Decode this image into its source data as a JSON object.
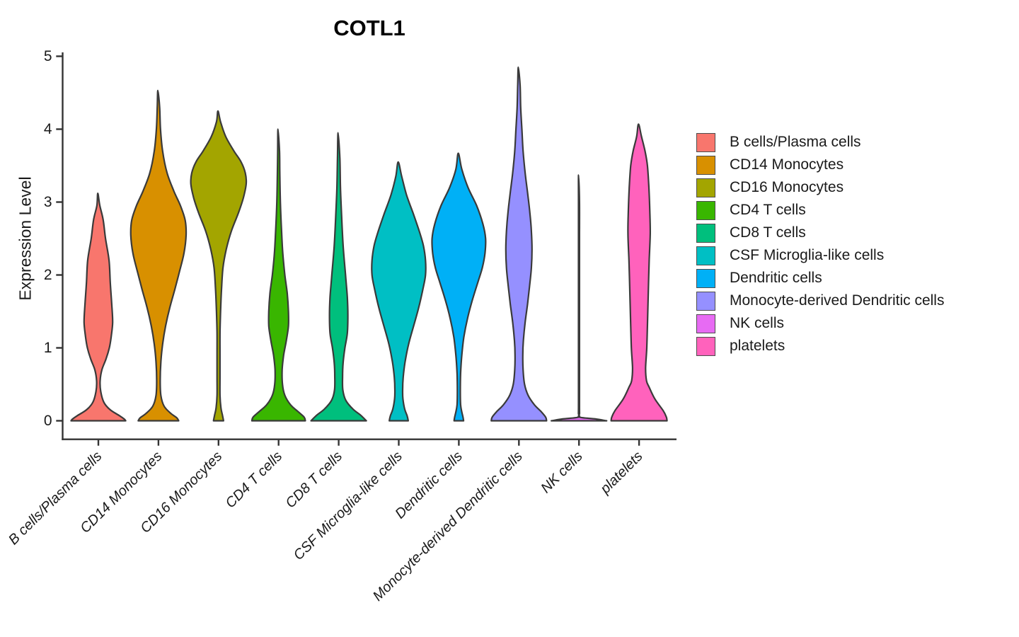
{
  "title": "COTL1",
  "y_axis": {
    "label": "Expression Level"
  },
  "legend": {
    "items": [
      {
        "label": "B cells/Plasma cells",
        "color": "#F8766D"
      },
      {
        "label": "CD14 Monocytes",
        "color": "#D89000"
      },
      {
        "label": "CD16 Monocytes",
        "color": "#A3A500"
      },
      {
        "label": "CD4 T cells",
        "color": "#39B600"
      },
      {
        "label": "CD8 T cells",
        "color": "#00BF7D"
      },
      {
        "label": "CSF Microglia-like cells",
        "color": "#00BFC4"
      },
      {
        "label": "Dendritic cells",
        "color": "#00B0F6"
      },
      {
        "label": "Monocyte-derived Dendritic cells",
        "color": "#9590FF"
      },
      {
        "label": "NK cells",
        "color": "#E76BF3"
      },
      {
        "label": "platelets",
        "color": "#FF62BC"
      }
    ]
  },
  "chart_data": {
    "type": "violin",
    "title": "COTL1",
    "xlabel": "",
    "ylabel": "Expression Level",
    "ylim": [
      0,
      5
    ],
    "y_ticks": [
      0,
      1,
      2,
      3,
      4,
      5
    ],
    "grid": false,
    "legend_position": "right",
    "outline_color": "#3A3A3A",
    "categories": [
      "B cells/Plasma cells",
      "CD14 Monocytes",
      "CD16 Monocytes",
      "CD4 T cells",
      "CD8 T cells",
      "CSF Microglia-like cells",
      "Dendritic cells",
      "Monocyte-derived Dendritic cells",
      "NK cells",
      "platelets"
    ],
    "series": [
      {
        "name": "B cells/Plasma cells",
        "color": "#F8766D",
        "peak_expression": 3.12,
        "profile": [
          [
            3.12,
            0.02
          ],
          [
            2.95,
            0.05
          ],
          [
            2.76,
            0.16
          ],
          [
            2.5,
            0.24
          ],
          [
            2.2,
            0.36
          ],
          [
            1.9,
            0.4
          ],
          [
            1.6,
            0.45
          ],
          [
            1.35,
            0.48
          ],
          [
            1.15,
            0.43
          ],
          [
            1.0,
            0.37
          ],
          [
            0.85,
            0.26
          ],
          [
            0.7,
            0.12
          ],
          [
            0.55,
            0.06
          ],
          [
            0.4,
            0.08
          ],
          [
            0.25,
            0.19
          ],
          [
            0.15,
            0.4
          ],
          [
            0.07,
            0.71
          ],
          [
            0.02,
            0.88
          ],
          [
            0,
            0.92
          ]
        ]
      },
      {
        "name": "CD14 Monocytes",
        "color": "#D89000",
        "peak_expression": 4.53,
        "profile": [
          [
            4.53,
            0.02
          ],
          [
            4.3,
            0.04
          ],
          [
            4.0,
            0.07
          ],
          [
            3.7,
            0.14
          ],
          [
            3.4,
            0.29
          ],
          [
            3.15,
            0.52
          ],
          [
            2.95,
            0.74
          ],
          [
            2.75,
            0.9
          ],
          [
            2.55,
            0.93
          ],
          [
            2.3,
            0.86
          ],
          [
            2.05,
            0.71
          ],
          [
            1.8,
            0.55
          ],
          [
            1.55,
            0.38
          ],
          [
            1.3,
            0.24
          ],
          [
            1.05,
            0.14
          ],
          [
            0.8,
            0.08
          ],
          [
            0.55,
            0.06
          ],
          [
            0.35,
            0.08
          ],
          [
            0.2,
            0.19
          ],
          [
            0.1,
            0.42
          ],
          [
            0.04,
            0.62
          ],
          [
            0,
            0.68
          ]
        ]
      },
      {
        "name": "CD16 Monocytes",
        "color": "#A3A500",
        "peak_expression": 4.25,
        "profile": [
          [
            4.25,
            0.02
          ],
          [
            4.1,
            0.07
          ],
          [
            3.9,
            0.24
          ],
          [
            3.7,
            0.52
          ],
          [
            3.55,
            0.76
          ],
          [
            3.4,
            0.9
          ],
          [
            3.25,
            0.93
          ],
          [
            3.05,
            0.83
          ],
          [
            2.85,
            0.67
          ],
          [
            2.6,
            0.43
          ],
          [
            2.35,
            0.26
          ],
          [
            2.1,
            0.15
          ],
          [
            1.8,
            0.1
          ],
          [
            1.5,
            0.07
          ],
          [
            1.2,
            0.05
          ],
          [
            0.9,
            0.05
          ],
          [
            0.6,
            0.05
          ],
          [
            0.35,
            0.05
          ],
          [
            0.18,
            0.08
          ],
          [
            0.08,
            0.13
          ],
          [
            0,
            0.17
          ]
        ]
      },
      {
        "name": "CD4 T cells",
        "color": "#39B600",
        "peak_expression": 4.0,
        "profile": [
          [
            4.0,
            0.02
          ],
          [
            3.7,
            0.03
          ],
          [
            3.4,
            0.04
          ],
          [
            3.0,
            0.06
          ],
          [
            2.6,
            0.1
          ],
          [
            2.3,
            0.14
          ],
          [
            2.0,
            0.21
          ],
          [
            1.75,
            0.29
          ],
          [
            1.5,
            0.33
          ],
          [
            1.3,
            0.33
          ],
          [
            1.1,
            0.26
          ],
          [
            0.9,
            0.17
          ],
          [
            0.7,
            0.12
          ],
          [
            0.5,
            0.13
          ],
          [
            0.35,
            0.21
          ],
          [
            0.22,
            0.4
          ],
          [
            0.12,
            0.67
          ],
          [
            0.05,
            0.86
          ],
          [
            0,
            0.9
          ]
        ]
      },
      {
        "name": "CD8 T cells",
        "color": "#00BF7D",
        "peak_expression": 3.95,
        "profile": [
          [
            3.95,
            0.02
          ],
          [
            3.6,
            0.04
          ],
          [
            3.2,
            0.06
          ],
          [
            2.8,
            0.1
          ],
          [
            2.4,
            0.15
          ],
          [
            2.0,
            0.23
          ],
          [
            1.7,
            0.29
          ],
          [
            1.45,
            0.31
          ],
          [
            1.2,
            0.29
          ],
          [
            1.0,
            0.21
          ],
          [
            0.8,
            0.15
          ],
          [
            0.6,
            0.13
          ],
          [
            0.42,
            0.14
          ],
          [
            0.28,
            0.24
          ],
          [
            0.16,
            0.48
          ],
          [
            0.08,
            0.73
          ],
          [
            0,
            0.93
          ]
        ]
      },
      {
        "name": "CSF Microglia-like cells",
        "color": "#00BFC4",
        "peak_expression": 3.55,
        "profile": [
          [
            3.55,
            0.02
          ],
          [
            3.35,
            0.1
          ],
          [
            3.1,
            0.26
          ],
          [
            2.85,
            0.48
          ],
          [
            2.6,
            0.69
          ],
          [
            2.4,
            0.83
          ],
          [
            2.2,
            0.9
          ],
          [
            2.0,
            0.9
          ],
          [
            1.8,
            0.81
          ],
          [
            1.55,
            0.67
          ],
          [
            1.3,
            0.5
          ],
          [
            1.05,
            0.33
          ],
          [
            0.8,
            0.21
          ],
          [
            0.6,
            0.15
          ],
          [
            0.42,
            0.13
          ],
          [
            0.3,
            0.14
          ],
          [
            0.16,
            0.2
          ],
          [
            0.07,
            0.28
          ],
          [
            0,
            0.32
          ]
        ]
      },
      {
        "name": "Dendritic cells",
        "color": "#00B0F6",
        "peak_expression": 3.67,
        "profile": [
          [
            3.67,
            0.02
          ],
          [
            3.45,
            0.1
          ],
          [
            3.2,
            0.31
          ],
          [
            2.95,
            0.6
          ],
          [
            2.7,
            0.81
          ],
          [
            2.5,
            0.9
          ],
          [
            2.3,
            0.88
          ],
          [
            2.1,
            0.79
          ],
          [
            1.9,
            0.64
          ],
          [
            1.65,
            0.45
          ],
          [
            1.4,
            0.29
          ],
          [
            1.15,
            0.17
          ],
          [
            0.9,
            0.1
          ],
          [
            0.65,
            0.06
          ],
          [
            0.4,
            0.05
          ],
          [
            0.22,
            0.06
          ],
          [
            0.12,
            0.1
          ],
          [
            0.05,
            0.14
          ],
          [
            0,
            0.16
          ]
        ]
      },
      {
        "name": "Monocyte-derived Dendritic cells",
        "color": "#9590FF",
        "peak_expression": 4.85,
        "profile": [
          [
            4.85,
            0.02
          ],
          [
            4.6,
            0.04
          ],
          [
            4.3,
            0.06
          ],
          [
            4.0,
            0.1
          ],
          [
            3.7,
            0.14
          ],
          [
            3.4,
            0.21
          ],
          [
            3.1,
            0.3
          ],
          [
            2.85,
            0.37
          ],
          [
            2.6,
            0.42
          ],
          [
            2.35,
            0.44
          ],
          [
            2.1,
            0.42
          ],
          [
            1.85,
            0.36
          ],
          [
            1.6,
            0.29
          ],
          [
            1.35,
            0.21
          ],
          [
            1.1,
            0.15
          ],
          [
            0.9,
            0.13
          ],
          [
            0.7,
            0.14
          ],
          [
            0.5,
            0.19
          ],
          [
            0.35,
            0.31
          ],
          [
            0.22,
            0.52
          ],
          [
            0.12,
            0.76
          ],
          [
            0.05,
            0.9
          ],
          [
            0,
            0.93
          ]
        ]
      },
      {
        "name": "NK cells",
        "color": "#E76BF3",
        "peak_expression": 3.37,
        "profile": [
          [
            3.37,
            0.015
          ],
          [
            3.0,
            0.016
          ],
          [
            2.5,
            0.016
          ],
          [
            2.0,
            0.016
          ],
          [
            1.5,
            0.016
          ],
          [
            1.0,
            0.016
          ],
          [
            0.5,
            0.016
          ],
          [
            0.25,
            0.017
          ],
          [
            0.1,
            0.018
          ],
          [
            0.05,
            0.02
          ],
          [
            0.025,
            0.55
          ],
          [
            0,
            0.93
          ]
        ]
      },
      {
        "name": "platelets",
        "color": "#FF62BC",
        "peak_expression": 4.07,
        "profile": [
          [
            4.07,
            0.02
          ],
          [
            3.9,
            0.08
          ],
          [
            3.7,
            0.2
          ],
          [
            3.5,
            0.28
          ],
          [
            3.2,
            0.33
          ],
          [
            2.9,
            0.36
          ],
          [
            2.57,
            0.375
          ],
          [
            2.2,
            0.34
          ],
          [
            1.9,
            0.32
          ],
          [
            1.6,
            0.3
          ],
          [
            1.3,
            0.28
          ],
          [
            1.0,
            0.26
          ],
          [
            0.72,
            0.22
          ],
          [
            0.55,
            0.25
          ],
          [
            0.46,
            0.34
          ],
          [
            0.3,
            0.53
          ],
          [
            0.14,
            0.81
          ],
          [
            0.05,
            0.92
          ],
          [
            0,
            0.94
          ]
        ]
      }
    ]
  }
}
